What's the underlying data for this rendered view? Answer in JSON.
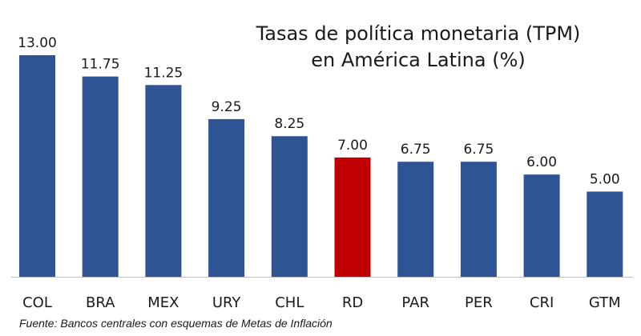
{
  "chart_data": {
    "type": "bar",
    "title": [
      "Tasas de política monetaria (TPM)",
      "en América Latina (%)"
    ],
    "source": "Fuente: Bancos centrales con esquemas de Metas de Inflación",
    "categories": [
      "COL",
      "BRA",
      "MEX",
      "URY",
      "CHL",
      "RD",
      "PAR",
      "PER",
      "CRI",
      "GTM"
    ],
    "values": [
      13.0,
      11.75,
      11.25,
      9.25,
      8.25,
      7.0,
      6.75,
      6.75,
      6.0,
      5.0
    ],
    "value_labels": [
      "13.00",
      "11.75",
      "11.25",
      "9.25",
      "8.25",
      "7.00",
      "6.75",
      "6.75",
      "6.00",
      "5.00"
    ],
    "colors": [
      "#2e5494",
      "#2e5494",
      "#2e5494",
      "#2e5494",
      "#2e5494",
      "#c00000",
      "#2e5494",
      "#2e5494",
      "#2e5494",
      "#2e5494"
    ],
    "ylim": [
      0,
      13
    ],
    "grid": false,
    "legend": "none"
  }
}
